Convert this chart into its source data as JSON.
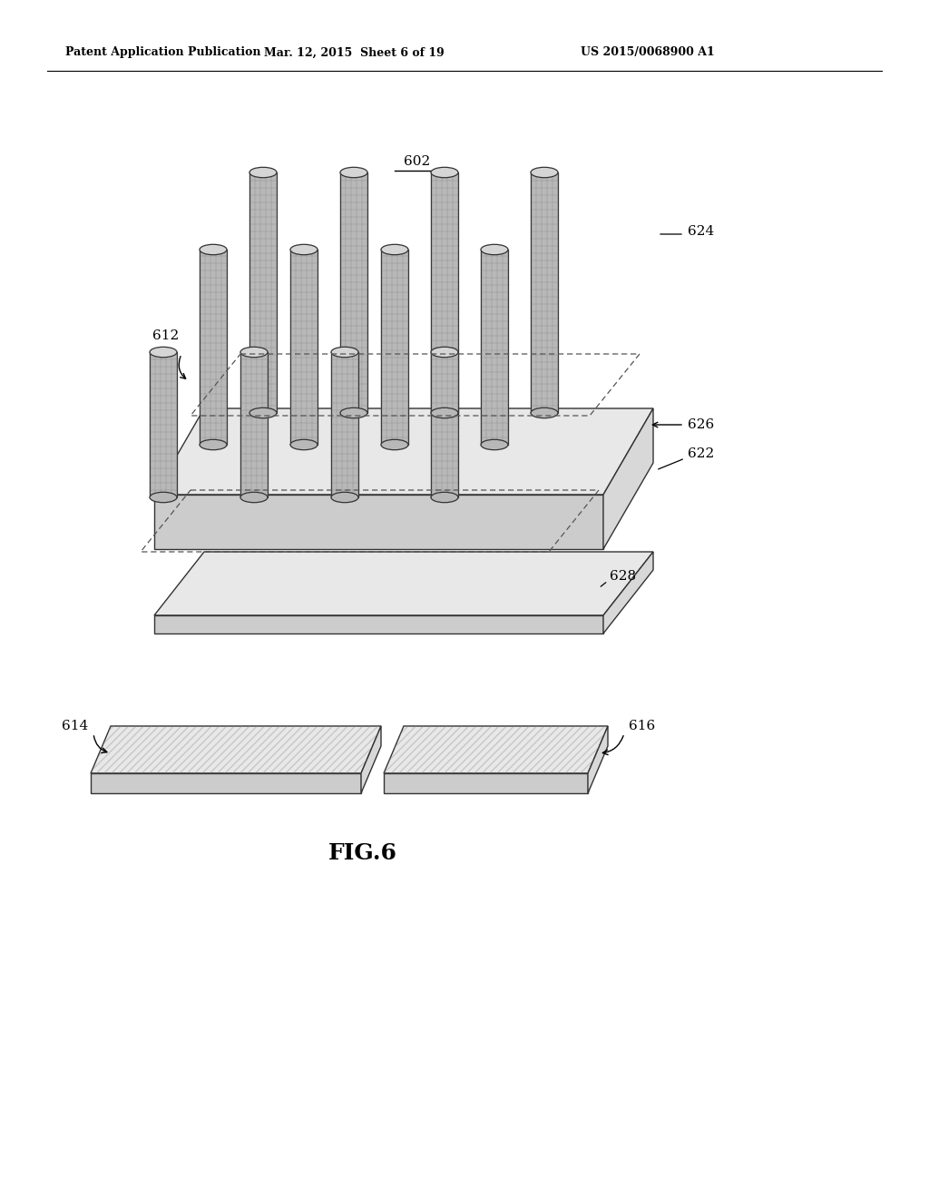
{
  "header_left": "Patent Application Publication",
  "header_mid": "Mar. 12, 2015  Sheet 6 of 19",
  "header_right": "US 2015/0068900 A1",
  "figure_label": "FIG.6",
  "label_602": "602",
  "label_612": "612",
  "label_614": "614",
  "label_616": "616",
  "label_622": "622",
  "label_624": "624",
  "label_626": "626",
  "label_628": "628",
  "bg_color": "#ffffff",
  "line_color": "#000000",
  "cylinder_fill": "#b8b8b8",
  "cylinder_top": "#d5d5d5",
  "plate_fill": "#e8e8e8",
  "plate_front": "#cccccc",
  "plate_right": "#d8d8d8",
  "plate_edge": "#333333"
}
